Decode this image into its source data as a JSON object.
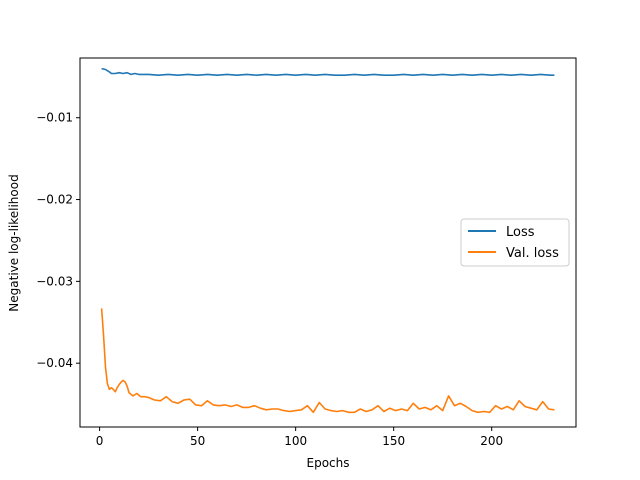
{
  "chart_data": {
    "type": "line",
    "title": "",
    "xlabel": "Epochs",
    "ylabel": "Negative log-likelihood",
    "xlim": [
      -10,
      243
    ],
    "ylim": [
      -0.0478,
      -0.0027
    ],
    "x_ticks": [
      0,
      50,
      100,
      150,
      200
    ],
    "y_ticks": [
      -0.01,
      -0.02,
      -0.03,
      -0.04
    ],
    "x_tick_labels": [
      "0",
      "50",
      "100",
      "150",
      "200"
    ],
    "y_tick_labels": [
      "−0.01",
      "−0.02",
      "−0.03",
      "−0.04"
    ],
    "grid": false,
    "legend_position": "center-right",
    "series": [
      {
        "name": "Loss",
        "color": "#1f77b4",
        "x": [
          1,
          3,
          5,
          6,
          8,
          10,
          12,
          14,
          16,
          18,
          20,
          25,
          30,
          35,
          40,
          45,
          50,
          55,
          60,
          65,
          70,
          75,
          80,
          85,
          90,
          95,
          100,
          105,
          110,
          115,
          120,
          125,
          130,
          135,
          140,
          145,
          150,
          155,
          160,
          165,
          170,
          175,
          180,
          185,
          190,
          195,
          200,
          205,
          210,
          215,
          220,
          225,
          230,
          232
        ],
        "values": [
          -0.004,
          -0.0041,
          -0.0044,
          -0.0046,
          -0.0046,
          -0.0045,
          -0.0046,
          -0.0045,
          -0.0047,
          -0.0046,
          -0.0047,
          -0.0047,
          -0.0048,
          -0.0047,
          -0.0048,
          -0.0047,
          -0.0048,
          -0.0047,
          -0.0048,
          -0.0047,
          -0.0048,
          -0.0047,
          -0.0048,
          -0.0047,
          -0.0048,
          -0.0047,
          -0.0048,
          -0.0047,
          -0.0048,
          -0.0047,
          -0.0048,
          -0.0048,
          -0.0047,
          -0.0048,
          -0.0047,
          -0.0048,
          -0.0048,
          -0.0047,
          -0.0048,
          -0.0047,
          -0.0048,
          -0.0047,
          -0.0048,
          -0.0047,
          -0.0048,
          -0.0047,
          -0.0048,
          -0.0047,
          -0.0048,
          -0.0047,
          -0.0048,
          -0.0047,
          -0.0048,
          -0.0048
        ]
      },
      {
        "name": "Val. loss",
        "color": "#ff7f0e",
        "x": [
          1,
          2,
          3,
          4,
          5,
          6,
          7,
          8,
          9,
          10,
          11,
          12,
          13,
          14,
          15,
          17,
          19,
          21,
          23,
          25,
          28,
          31,
          34,
          37,
          40,
          43,
          46,
          49,
          52,
          55,
          58,
          61,
          64,
          67,
          70,
          73,
          76,
          79,
          82,
          85,
          88,
          91,
          94,
          97,
          100,
          103,
          106,
          109,
          112,
          115,
          118,
          121,
          124,
          127,
          130,
          133,
          136,
          139,
          142,
          145,
          148,
          151,
          154,
          157,
          160,
          163,
          166,
          169,
          172,
          175,
          178,
          181,
          184,
          187,
          190,
          193,
          196,
          199,
          202,
          205,
          208,
          211,
          214,
          217,
          220,
          223,
          226,
          229,
          232
        ],
        "values": [
          -0.0333,
          -0.0365,
          -0.0405,
          -0.0425,
          -0.0432,
          -0.043,
          -0.0432,
          -0.0435,
          -0.043,
          -0.0426,
          -0.0423,
          -0.0421,
          -0.0423,
          -0.0428,
          -0.0436,
          -0.044,
          -0.0437,
          -0.0441,
          -0.0441,
          -0.0442,
          -0.0445,
          -0.0446,
          -0.0441,
          -0.0447,
          -0.0449,
          -0.0445,
          -0.0444,
          -0.0451,
          -0.0452,
          -0.0446,
          -0.0451,
          -0.0452,
          -0.0451,
          -0.0453,
          -0.0451,
          -0.0454,
          -0.0454,
          -0.0452,
          -0.0455,
          -0.0457,
          -0.0456,
          -0.0456,
          -0.0458,
          -0.0459,
          -0.0458,
          -0.0457,
          -0.0452,
          -0.046,
          -0.0448,
          -0.0456,
          -0.0458,
          -0.0459,
          -0.0458,
          -0.046,
          -0.046,
          -0.0456,
          -0.0459,
          -0.0457,
          -0.0452,
          -0.0459,
          -0.0455,
          -0.0458,
          -0.0456,
          -0.0458,
          -0.0449,
          -0.0456,
          -0.0454,
          -0.0457,
          -0.0452,
          -0.0458,
          -0.044,
          -0.0452,
          -0.0449,
          -0.0453,
          -0.0458,
          -0.046,
          -0.0459,
          -0.046,
          -0.0452,
          -0.0456,
          -0.0453,
          -0.0457,
          -0.0446,
          -0.0453,
          -0.0455,
          -0.0457,
          -0.0447,
          -0.0456,
          -0.0457
        ]
      }
    ]
  }
}
